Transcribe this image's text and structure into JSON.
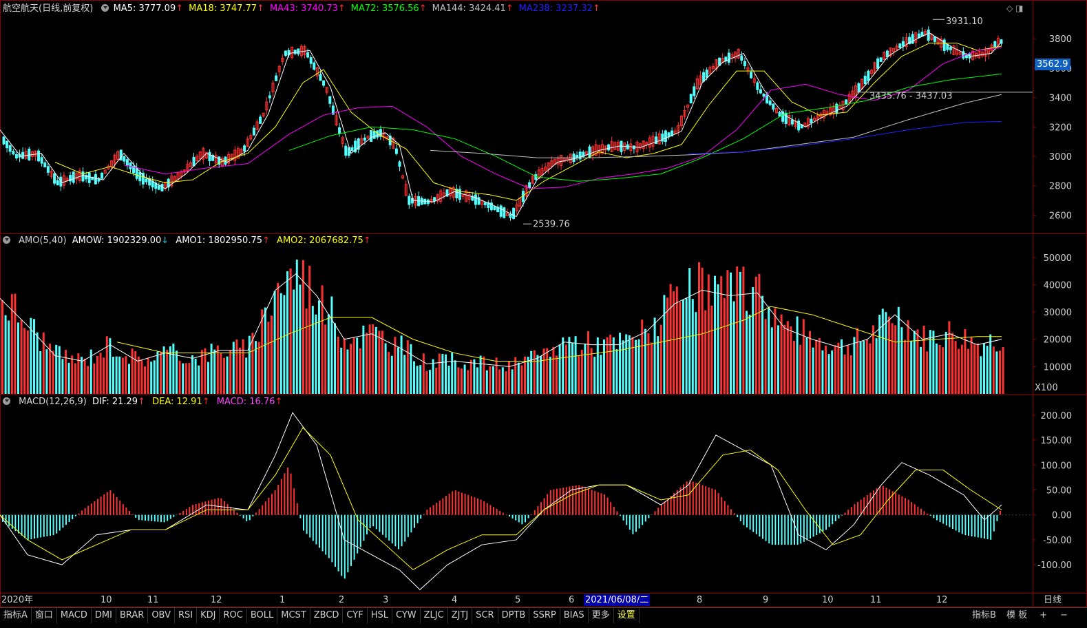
{
  "header": {
    "title": "航空航天(日线,前复权)",
    "ma": [
      {
        "label": "MA5: 3777.09",
        "color": "#ffffff",
        "arrow": "↑"
      },
      {
        "label": "MA18: 3747.77",
        "color": "#ffff00",
        "arrow": "↑"
      },
      {
        "label": "MA43: 3740.73",
        "color": "#ff00ff",
        "arrow": "↑"
      },
      {
        "label": "MA72: 3576.56",
        "color": "#00ff00",
        "arrow": "↑"
      },
      {
        "label": "MA144: 3424.41",
        "color": "#c0c0c0",
        "arrow": "↑"
      },
      {
        "label": "MA238: 3237.32",
        "color": "#2020ff",
        "arrow": "↑"
      }
    ]
  },
  "amo_header": {
    "title": "AMO(5,40)",
    "amow": "AMOW: 1902329.00",
    "amow_arrow": "↓",
    "amo1": "AMO1: 1802950.75",
    "amo1_arrow": "↑",
    "amo2": "AMO2: 2067682.75",
    "amo2_arrow": "↑"
  },
  "macd_header": {
    "title": "MACD(12,26,9)",
    "dif": "DIF: 21.29",
    "dif_arrow": "↑",
    "dea": "DEA: 12.91",
    "dea_arrow": "↑",
    "macd": "MACD: 16.76",
    "macd_arrow": "↑"
  },
  "price_tag": "3562.9",
  "x_labels": [
    "2020年",
    "10",
    "11",
    "12",
    "1",
    "2",
    "3",
    "4",
    "5",
    "6",
    "8",
    "9",
    "10",
    "11",
    "12"
  ],
  "current_date": "2021/06/08/二",
  "period_label": "日线",
  "multiplier_label": "X100",
  "toolbar": {
    "tabs": [
      "指标A",
      "窗口",
      "MACD",
      "DMI",
      "BRAR",
      "OBV",
      "RSI",
      "KDJ",
      "ROC",
      "BOLL",
      "MCST",
      "ZBCD",
      "CYF",
      "HSL",
      "CYW",
      "ZLJC",
      "ZJTJ",
      "SCR",
      "DPTB",
      "SSRP",
      "BIAS",
      "更多",
      "设置"
    ],
    "right": [
      "指标B",
      "模 板",
      "+",
      "−"
    ]
  },
  "chart_data": [
    {
      "type": "line",
      "title": "航空航天(日线,前复权)",
      "yticks": [
        3800,
        3600,
        3400,
        3200,
        3000,
        2800,
        2600
      ],
      "ylim": [
        2480,
        3960
      ],
      "annotations": [
        "3931.10",
        "2539.76",
        "3435.76 - 3437.03"
      ],
      "series": [
        {
          "name": "MA5",
          "color": "#ffffff",
          "x": [
            0,
            30,
            60,
            90,
            120,
            150,
            180,
            210,
            240,
            270,
            300,
            330,
            360,
            390,
            420,
            450,
            480,
            510,
            540,
            560,
            580,
            600,
            630,
            660,
            690,
            720,
            750,
            780,
            810,
            840,
            870,
            900,
            930,
            960,
            990,
            1020,
            1050,
            1080,
            1110,
            1140,
            1170,
            1200,
            1230,
            1260,
            1290,
            1320,
            1350,
            1380,
            1410,
            1440,
            1455
          ],
          "y": [
            3180,
            3000,
            3020,
            2820,
            2870,
            2840,
            3020,
            2860,
            2780,
            2880,
            3020,
            2960,
            3040,
            3290,
            3700,
            3720,
            3470,
            3020,
            3130,
            3160,
            3080,
            2700,
            2690,
            2760,
            2720,
            2660,
            2590,
            2840,
            2960,
            2990,
            3040,
            3070,
            3060,
            3110,
            3170,
            3500,
            3640,
            3700,
            3450,
            3280,
            3200,
            3280,
            3340,
            3500,
            3680,
            3770,
            3840,
            3750,
            3680,
            3700,
            3780
          ]
        },
        {
          "name": "MA18",
          "color": "#ffff00",
          "x": [
            80,
            120,
            160,
            200,
            240,
            280,
            320,
            360,
            400,
            440,
            470,
            510,
            550,
            590,
            630,
            670,
            710,
            750,
            790,
            830,
            870,
            910,
            950,
            990,
            1030,
            1070,
            1110,
            1150,
            1190,
            1230,
            1270,
            1310,
            1350,
            1390,
            1420,
            1455
          ],
          "y": [
            2960,
            2880,
            2930,
            2870,
            2820,
            2840,
            2960,
            3020,
            3200,
            3500,
            3590,
            3300,
            3150,
            3050,
            2820,
            2760,
            2740,
            2700,
            2830,
            2930,
            3030,
            2990,
            3020,
            3080,
            3350,
            3580,
            3580,
            3370,
            3280,
            3300,
            3500,
            3680,
            3770,
            3770,
            3720,
            3750
          ]
        },
        {
          "name": "MA43",
          "color": "#ff00ff",
          "x": [
            180,
            240,
            300,
            360,
            420,
            470,
            520,
            570,
            620,
            670,
            720,
            770,
            820,
            870,
            920,
            970,
            1020,
            1070,
            1120,
            1170,
            1220,
            1270,
            1320,
            1370,
            1420,
            1455
          ],
          "y": [
            2940,
            2880,
            2920,
            2950,
            3150,
            3280,
            3330,
            3340,
            3200,
            3000,
            2880,
            2780,
            2790,
            2850,
            2880,
            2920,
            3000,
            3180,
            3450,
            3490,
            3420,
            3380,
            3450,
            3630,
            3720,
            3740
          ]
        },
        {
          "name": "MA72",
          "color": "#00ff00",
          "x": [
            420,
            480,
            540,
            600,
            660,
            720,
            780,
            840,
            900,
            960,
            1020,
            1080,
            1140,
            1200,
            1260,
            1320,
            1380,
            1455
          ],
          "y": [
            3040,
            3140,
            3200,
            3180,
            3120,
            3000,
            2860,
            2830,
            2850,
            2880,
            2990,
            3120,
            3290,
            3330,
            3380,
            3470,
            3520,
            3560
          ]
        },
        {
          "name": "MA144",
          "color": "#c0c0c0",
          "x": [
            625,
            700,
            780,
            860,
            940,
            1000,
            1080,
            1160,
            1240,
            1320,
            1400,
            1455
          ],
          "y": [
            3040,
            3020,
            2990,
            2990,
            3000,
            3010,
            3030,
            3080,
            3130,
            3250,
            3360,
            3420
          ]
        },
        {
          "name": "MA238",
          "color": "#2020ff",
          "x": [
            1000,
            1080,
            1160,
            1240,
            1320,
            1400,
            1455
          ],
          "y": [
            3015,
            3030,
            3070,
            3120,
            3180,
            3230,
            3237
          ]
        }
      ]
    },
    {
      "type": "bar",
      "title": "AMO(5,40)",
      "yticks": [
        50000,
        40000,
        30000,
        20000,
        10000
      ],
      "ylim": [
        0,
        54000
      ],
      "series": [
        {
          "name": "AMO1",
          "color": "#ffffff",
          "x": [
            0,
            40,
            80,
            120,
            160,
            200,
            240,
            280,
            320,
            360,
            400,
            430,
            460,
            500,
            540,
            580,
            620,
            660,
            700,
            740,
            780,
            820,
            860,
            900,
            940,
            980,
            1020,
            1060,
            1100,
            1140,
            1180,
            1220,
            1260,
            1300,
            1340,
            1380,
            1420,
            1455
          ],
          "y": [
            35000,
            25000,
            14000,
            12000,
            18000,
            12000,
            15000,
            13000,
            16000,
            16000,
            38000,
            44000,
            36000,
            20000,
            22000,
            17000,
            11000,
            12000,
            11000,
            10000,
            13000,
            19000,
            18000,
            18000,
            23000,
            33000,
            38000,
            36000,
            37000,
            24000,
            20000,
            17000,
            20000,
            29000,
            20000,
            22000,
            18000,
            20000
          ]
        },
        {
          "name": "AMO2",
          "color": "#ffff00",
          "x": [
            170,
            240,
            300,
            360,
            420,
            480,
            540,
            600,
            660,
            720,
            780,
            840,
            900,
            960,
            1020,
            1080,
            1120,
            1180,
            1240,
            1300,
            1360,
            1420,
            1455
          ],
          "y": [
            19000,
            15000,
            15000,
            15000,
            22000,
            28000,
            28000,
            20000,
            15000,
            12000,
            12000,
            14000,
            16000,
            19000,
            22000,
            27000,
            32000,
            29000,
            24000,
            19000,
            20000,
            21000,
            21000
          ]
        }
      ]
    },
    {
      "type": "bar",
      "title": "MACD(12,26,9)",
      "yticks": [
        200,
        150,
        100,
        50,
        0,
        -50,
        -100
      ],
      "ylim": [
        -155,
        215
      ],
      "series": [
        {
          "name": "DIF",
          "color": "#ffffff",
          "x": [
            0,
            40,
            90,
            140,
            190,
            240,
            300,
            360,
            400,
            425,
            460,
            500,
            540,
            580,
            610,
            650,
            700,
            750,
            790,
            830,
            870,
            910,
            960,
            1000,
            1040,
            1080,
            1120,
            1160,
            1200,
            1240,
            1280,
            1310,
            1350,
            1400,
            1430,
            1455
          ],
          "y": [
            0,
            -80,
            -100,
            -40,
            -30,
            -30,
            20,
            10,
            120,
            205,
            140,
            -50,
            -80,
            -110,
            -150,
            -100,
            -60,
            -50,
            10,
            50,
            60,
            60,
            20,
            60,
            160,
            130,
            100,
            -40,
            -70,
            -20,
            60,
            105,
            80,
            40,
            -10,
            20
          ]
        },
        {
          "name": "DEA",
          "color": "#ffff00",
          "x": [
            0,
            40,
            90,
            140,
            190,
            240,
            300,
            360,
            400,
            440,
            480,
            520,
            560,
            600,
            650,
            700,
            750,
            790,
            830,
            870,
            910,
            960,
            1000,
            1050,
            1090,
            1130,
            1170,
            1210,
            1250,
            1290,
            1330,
            1370,
            1410,
            1455
          ],
          "y": [
            0,
            -50,
            -90,
            -60,
            -30,
            -30,
            10,
            10,
            80,
            175,
            120,
            -10,
            -60,
            -110,
            -70,
            -40,
            -40,
            10,
            40,
            60,
            60,
            30,
            40,
            120,
            130,
            90,
            10,
            -60,
            -40,
            30,
            90,
            90,
            50,
            10
          ]
        },
        {
          "name": "MACD",
          "color": "#ff3030",
          "x": [
            0,
            40,
            80,
            120,
            160,
            200,
            240,
            280,
            320,
            360,
            400,
            420,
            440,
            480,
            500,
            540,
            580,
            620,
            660,
            700,
            760,
            800,
            840,
            880,
            920,
            960,
            1000,
            1040,
            1080,
            1120,
            1160,
            1200,
            1240,
            1280,
            1320,
            1360,
            1400,
            1440,
            1455
          ],
          "y": [
            -10,
            -50,
            -40,
            10,
            50,
            -10,
            -15,
            20,
            35,
            -15,
            50,
            100,
            -30,
            -90,
            -130,
            -20,
            -70,
            10,
            50,
            30,
            -20,
            50,
            60,
            40,
            -40,
            20,
            70,
            50,
            -20,
            -60,
            -60,
            -30,
            20,
            60,
            30,
            -10,
            -40,
            -50,
            17
          ]
        }
      ]
    }
  ]
}
